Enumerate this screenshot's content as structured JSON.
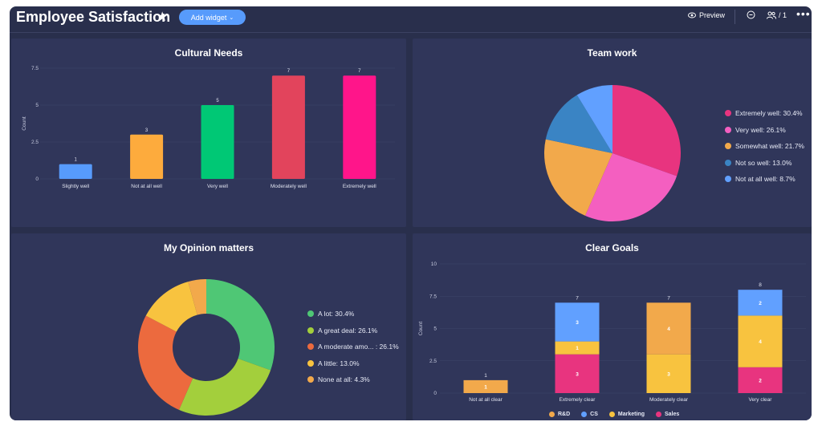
{
  "header": {
    "title": "Employee Satisfaction",
    "add_widget_label": "Add widget",
    "preview_label": "Preview",
    "members_count": "/ 1"
  },
  "colors": {
    "background": "#292f4c",
    "widget": "#30365a",
    "accent": "#579bfc"
  },
  "widgets": {
    "cultural_needs": {
      "title": "Cultural Needs"
    },
    "team_work": {
      "title": "Team work"
    },
    "opinion": {
      "title": "My Opinion matters"
    },
    "clear_goals": {
      "title": "Clear Goals"
    }
  },
  "chart_data": [
    {
      "type": "bar",
      "title": "Cultural Needs",
      "ylabel": "Count",
      "ylim": [
        0,
        7.5
      ],
      "yticks": [
        "7.5",
        "5",
        "2.5",
        "0"
      ],
      "categories": [
        "Slightly well",
        "Not at all well",
        "Very well",
        "Moderately well",
        "Extremely well"
      ],
      "values": [
        1,
        3,
        5,
        7,
        7
      ],
      "colors": [
        "#579bfc",
        "#fdab3d",
        "#00c875",
        "#e2445c",
        "#ff158a"
      ]
    },
    {
      "type": "pie",
      "title": "Team work",
      "slices": [
        {
          "label": "Extremely well: 30.4%",
          "value": 30.4,
          "color": "#e8347f"
        },
        {
          "label": "Very well: 26.1%",
          "value": 26.1,
          "color": "#f45fc0"
        },
        {
          "label": "Somewhat well: 21.7%",
          "value": 21.7,
          "color": "#f2a94b"
        },
        {
          "label": "Not so well: 13.0%",
          "value": 13.0,
          "color": "#3a84c4"
        },
        {
          "label": "Not at all well: 8.7%",
          "value": 8.7,
          "color": "#61a0ff"
        }
      ]
    },
    {
      "type": "pie",
      "title": "My Opinion matters",
      "donut": true,
      "slices": [
        {
          "label": "A lot: 30.4%",
          "value": 30.4,
          "color": "#4fc775"
        },
        {
          "label": "A great deal: 26.1%",
          "value": 26.1,
          "color": "#a3cf3c"
        },
        {
          "label": "A moderate amo... : 26.1%",
          "value": 26.1,
          "color": "#ec6a3e"
        },
        {
          "label": "A little: 13.0%",
          "value": 13.0,
          "color": "#f8c33f"
        },
        {
          "label": "None at all: 4.3%",
          "value": 4.3,
          "color": "#f2a94b"
        }
      ]
    },
    {
      "type": "bar",
      "stacked": true,
      "title": "Clear Goals",
      "ylabel": "Count",
      "ylim": [
        0,
        10
      ],
      "yticks": [
        "10",
        "7.5",
        "5",
        "2.5",
        "0"
      ],
      "categories": [
        "Not at all clear",
        "Extremely clear",
        "Moderately clear",
        "Very clear"
      ],
      "totals": [
        1,
        7,
        7,
        8
      ],
      "series": [
        {
          "name": "R&D",
          "color": "#f2a94b",
          "values": [
            1,
            0,
            4,
            0
          ]
        },
        {
          "name": "CS",
          "color": "#61a0ff",
          "values": [
            0,
            3,
            0,
            2
          ]
        },
        {
          "name": "Marketing",
          "color": "#f8c33f",
          "values": [
            0,
            1,
            3,
            4
          ]
        },
        {
          "name": "Sales",
          "color": "#e8347f",
          "values": [
            0,
            3,
            0,
            2
          ]
        }
      ],
      "stack_order": [
        "Sales",
        "Marketing",
        "R&D",
        "CS"
      ]
    }
  ]
}
